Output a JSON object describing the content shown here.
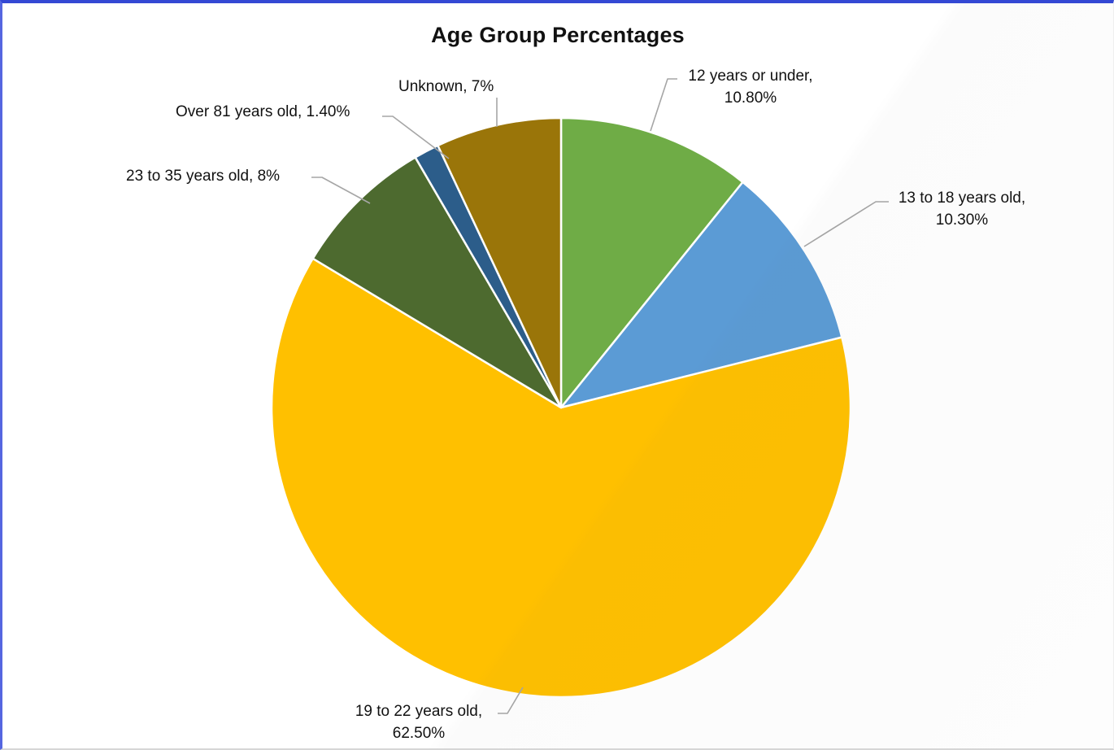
{
  "frame": {
    "background": "#ffffff",
    "border_top_color": "#3448d4",
    "border_left_color": "#5566e0",
    "border_bottom_color": "#d6d6d6"
  },
  "chart_data": {
    "type": "pie",
    "title": "Age Group Percentages",
    "legend": "none",
    "start_angle_deg": 0,
    "direction": "clockwise",
    "label_style": "category name + percentage, outside with leader lines",
    "leader_line_color": "#a6a6a6",
    "slice_separator_color": "#ffffff",
    "categories": [
      "12 years or under",
      "13 to 18 years old",
      "19 to 22 years old",
      "23 to 35 years old",
      "Over 81 years old",
      "Unknown"
    ],
    "values": [
      10.8,
      10.3,
      62.5,
      8,
      1.4,
      7
    ],
    "slices": [
      {
        "category": "12 years or under",
        "percent": 10.8,
        "percent_display": "10.80%",
        "color": "#6FAC46",
        "label_lines": [
          "12 years or under,",
          "10.80%"
        ]
      },
      {
        "category": "13 to 18 years old",
        "percent": 10.3,
        "percent_display": "10.30%",
        "color": "#5B9BD5",
        "label_lines": [
          "13 to 18 years old,",
          "10.30%"
        ]
      },
      {
        "category": "19 to 22 years old",
        "percent": 62.5,
        "percent_display": "62.50%",
        "color": "#FFC000",
        "label_lines": [
          "19 to 22 years old,",
          "62.50%"
        ]
      },
      {
        "category": "23 to 35 years old",
        "percent": 8,
        "percent_display": "8%",
        "color": "#4D6A2F",
        "label_lines": [
          "23 to 35 years old, 8%"
        ]
      },
      {
        "category": "Over 81 years old",
        "percent": 1.4,
        "percent_display": "1.40%",
        "color": "#2C5D8A",
        "label_lines": [
          "Over 81 years old, 1.40%"
        ]
      },
      {
        "category": "Unknown",
        "percent": 7,
        "percent_display": "7%",
        "color": "#9A7509",
        "label_lines": [
          "Unknown, 7%"
        ]
      }
    ]
  }
}
